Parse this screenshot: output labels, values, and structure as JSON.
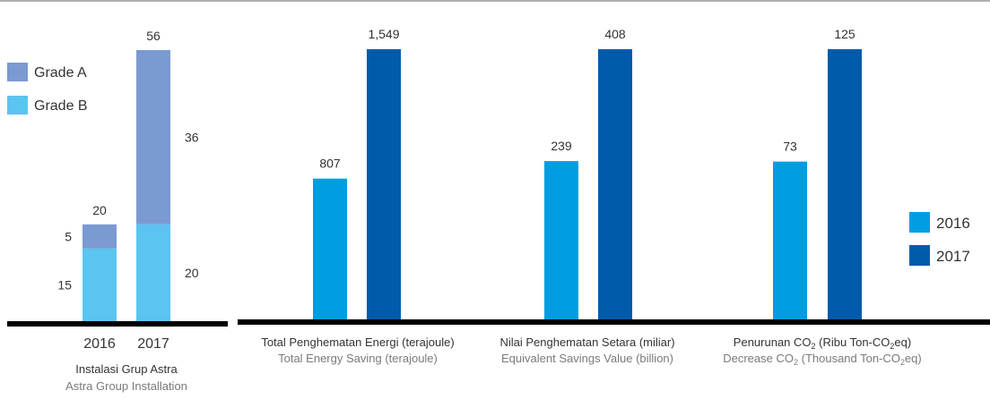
{
  "colors": {
    "grade_a": "#7b9ad2",
    "grade_b": "#5bc4f1",
    "y2016": "#009ee0",
    "y2017": "#005baa",
    "baseline": "#000000",
    "topline": "#b0b0b0",
    "label": "#333333",
    "sublabel": "#7a7a7a"
  },
  "legend_grades": [
    {
      "label": "Grade A",
      "color_key": "grade_a"
    },
    {
      "label": "Grade B",
      "color_key": "grade_b"
    }
  ],
  "legend_years": [
    {
      "label": "2016",
      "color_key": "y2016"
    },
    {
      "label": "2017",
      "color_key": "y2017"
    }
  ],
  "chart_data": [
    {
      "type": "bar",
      "stacked": true,
      "categories": [
        "2016",
        "2017"
      ],
      "series": [
        {
          "name": "Grade B",
          "values": [
            15,
            20
          ]
        },
        {
          "name": "Grade A",
          "values": [
            5,
            36
          ]
        }
      ],
      "totals": [
        20,
        56
      ],
      "value_labels": {
        "grade_b": [
          "15",
          "20"
        ],
        "grade_a": [
          "5",
          "36"
        ],
        "totals": [
          "20",
          "56"
        ]
      },
      "xlabel": "Instalasi Grup Astra",
      "xlabel_en": "Astra Group Installation",
      "legend_position": "top-left",
      "grid": false
    },
    {
      "type": "bar",
      "categories": [
        "2016",
        "2017"
      ],
      "values": [
        807,
        1549
      ],
      "value_labels": [
        "807",
        "1,549"
      ],
      "xlabel": "Total Penghematan Energi (terajoule)",
      "xlabel_en": "Total Energy Saving (terajoule)",
      "legend_position": "right",
      "grid": false
    },
    {
      "type": "bar",
      "categories": [
        "2016",
        "2017"
      ],
      "values": [
        239,
        408
      ],
      "value_labels": [
        "239",
        "408"
      ],
      "xlabel": "Nilai Penghematan Setara (miliar)",
      "xlabel_en": "Equivalent Savings Value (billion)",
      "legend_position": "right",
      "grid": false
    },
    {
      "type": "bar",
      "categories": [
        "2016",
        "2017"
      ],
      "values": [
        73,
        125
      ],
      "value_labels": [
        "73",
        "125"
      ],
      "xlabel_parts": [
        "Penurunan CO",
        "2",
        " (Ribu Ton-CO",
        "2",
        "eq)"
      ],
      "xlabel_en_parts": [
        "Decrease CO",
        "2",
        " (Thousand Ton-CO",
        "2",
        "eq)"
      ],
      "legend_position": "right",
      "grid": false
    }
  ]
}
